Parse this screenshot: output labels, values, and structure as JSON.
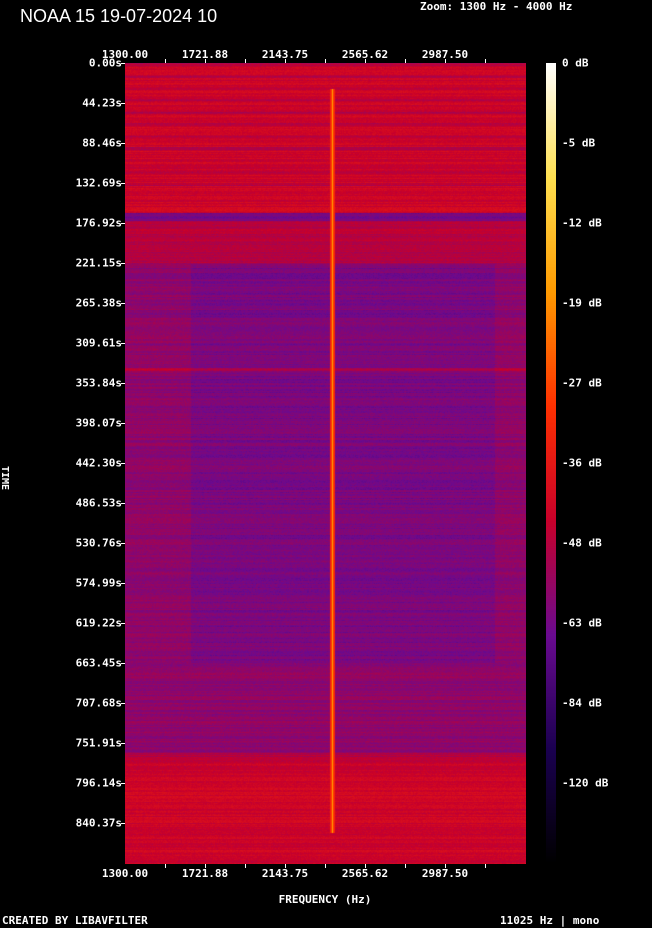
{
  "header": {
    "title": "NOAA 15 19-07-2024 10",
    "zoom": "Zoom: 1300 Hz - 4000 Hz"
  },
  "footer": {
    "left": "CREATED BY LIBAVFILTER",
    "right": "11025 Hz | mono"
  },
  "chart_data": {
    "type": "heatmap",
    "title": "NOAA 15 19-07-2024 10",
    "xlabel": "FREQUENCY (Hz)",
    "ylabel": "TIME",
    "x_ticks": [
      "1300.00",
      "1721.88",
      "2143.75",
      "2565.62",
      "2987.50"
    ],
    "y_ticks": [
      "0.00s",
      "44.23s",
      "88.46s",
      "132.69s",
      "176.92s",
      "221.15s",
      "265.38s",
      "309.61s",
      "353.84s",
      "398.07s",
      "442.30s",
      "486.53s",
      "530.76s",
      "574.99s",
      "619.22s",
      "663.45s",
      "707.68s",
      "751.91s",
      "796.14s",
      "840.37s"
    ],
    "colorbar_ticks": [
      "0 dB",
      "-5 dB",
      "-12 dB",
      "-19 dB",
      "-27 dB",
      "-36 dB",
      "-48 dB",
      "-63 dB",
      "-84 dB",
      "-120 dB"
    ],
    "xlim_hz": [
      1300,
      4000
    ],
    "colormap": [
      "#000000",
      "#1a0050",
      "#6a0a90",
      "#c8002a",
      "#ff3000",
      "#ff9a00",
      "#ffe050",
      "#ffffff"
    ],
    "tone_frequency_hz": 2400
  }
}
